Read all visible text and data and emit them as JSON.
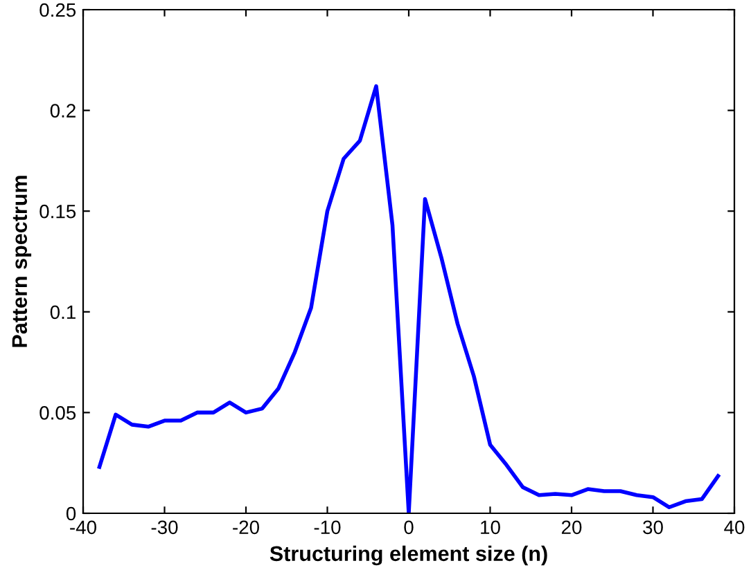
{
  "chart_data": {
    "type": "line",
    "xlabel": "Structuring element size (n)",
    "ylabel": "Pattern spectrum",
    "x": [
      -38,
      -36,
      -34,
      -32,
      -30,
      -28,
      -26,
      -24,
      -22,
      -20,
      -18,
      -16,
      -14,
      -12,
      -10,
      -8,
      -6,
      -4,
      -2,
      0,
      2,
      4,
      6,
      8,
      10,
      12,
      14,
      16,
      18,
      20,
      22,
      24,
      26,
      28,
      30,
      32,
      34,
      36,
      38
    ],
    "series": [
      {
        "color": "#0000ff",
        "values": [
          0.023,
          0.049,
          0.044,
          0.043,
          0.046,
          0.046,
          0.05,
          0.05,
          0.055,
          0.05,
          0.052,
          0.062,
          0.08,
          0.102,
          0.15,
          0.176,
          0.185,
          0.212,
          0.143,
          0.0,
          0.156,
          0.127,
          0.094,
          0.068,
          0.034,
          0.024,
          0.013,
          0.009,
          0.0096,
          0.009,
          0.012,
          0.011,
          0.011,
          0.009,
          0.008,
          0.003,
          0.006,
          0.007,
          0.0185
        ]
      }
    ],
    "xlim": [
      -40,
      40
    ],
    "ylim": [
      0,
      0.25
    ],
    "xticks": [
      -40,
      -30,
      -20,
      -10,
      0,
      10,
      20,
      30,
      40
    ],
    "yticks": [
      0,
      0.05,
      0.1,
      0.15,
      0.2,
      0.25
    ],
    "grid": false,
    "legend": false,
    "marker": "none",
    "line_style": "solid"
  }
}
